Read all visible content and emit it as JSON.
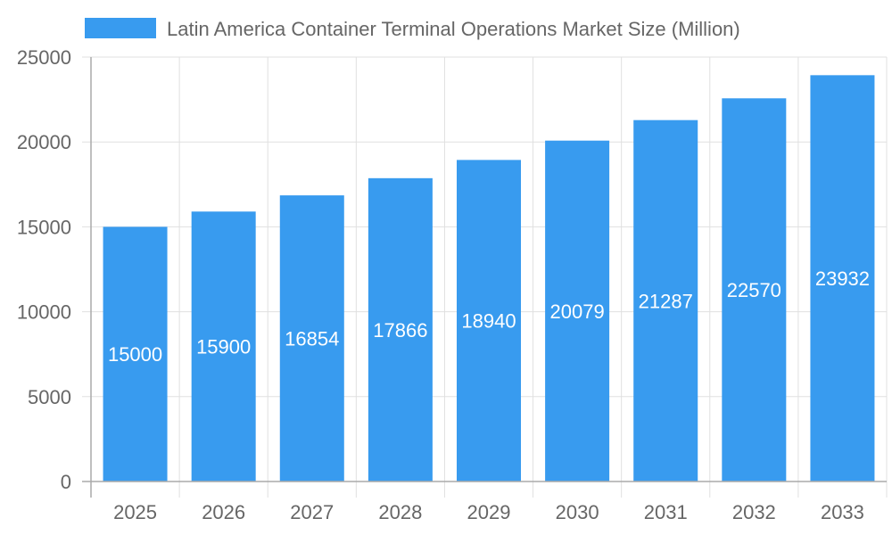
{
  "chart_data": {
    "type": "bar",
    "title": "",
    "xlabel": "",
    "ylabel": "",
    "categories": [
      "2025",
      "2026",
      "2027",
      "2028",
      "2029",
      "2030",
      "2031",
      "2032",
      "2033"
    ],
    "series": [
      {
        "name": "Latin America Container Terminal Operations Market Size (Million)",
        "values": [
          15000,
          15900,
          16854,
          17866,
          18940,
          20079,
          21287,
          22570,
          23932
        ]
      }
    ],
    "ylim": [
      0,
      25000
    ],
    "yticks": [
      0,
      5000,
      10000,
      15000,
      20000,
      25000
    ],
    "grid": true,
    "legend_position": "top",
    "data_labels": "inside-center",
    "bar_color": "#389bef",
    "data_label_color": "#ffffff"
  }
}
